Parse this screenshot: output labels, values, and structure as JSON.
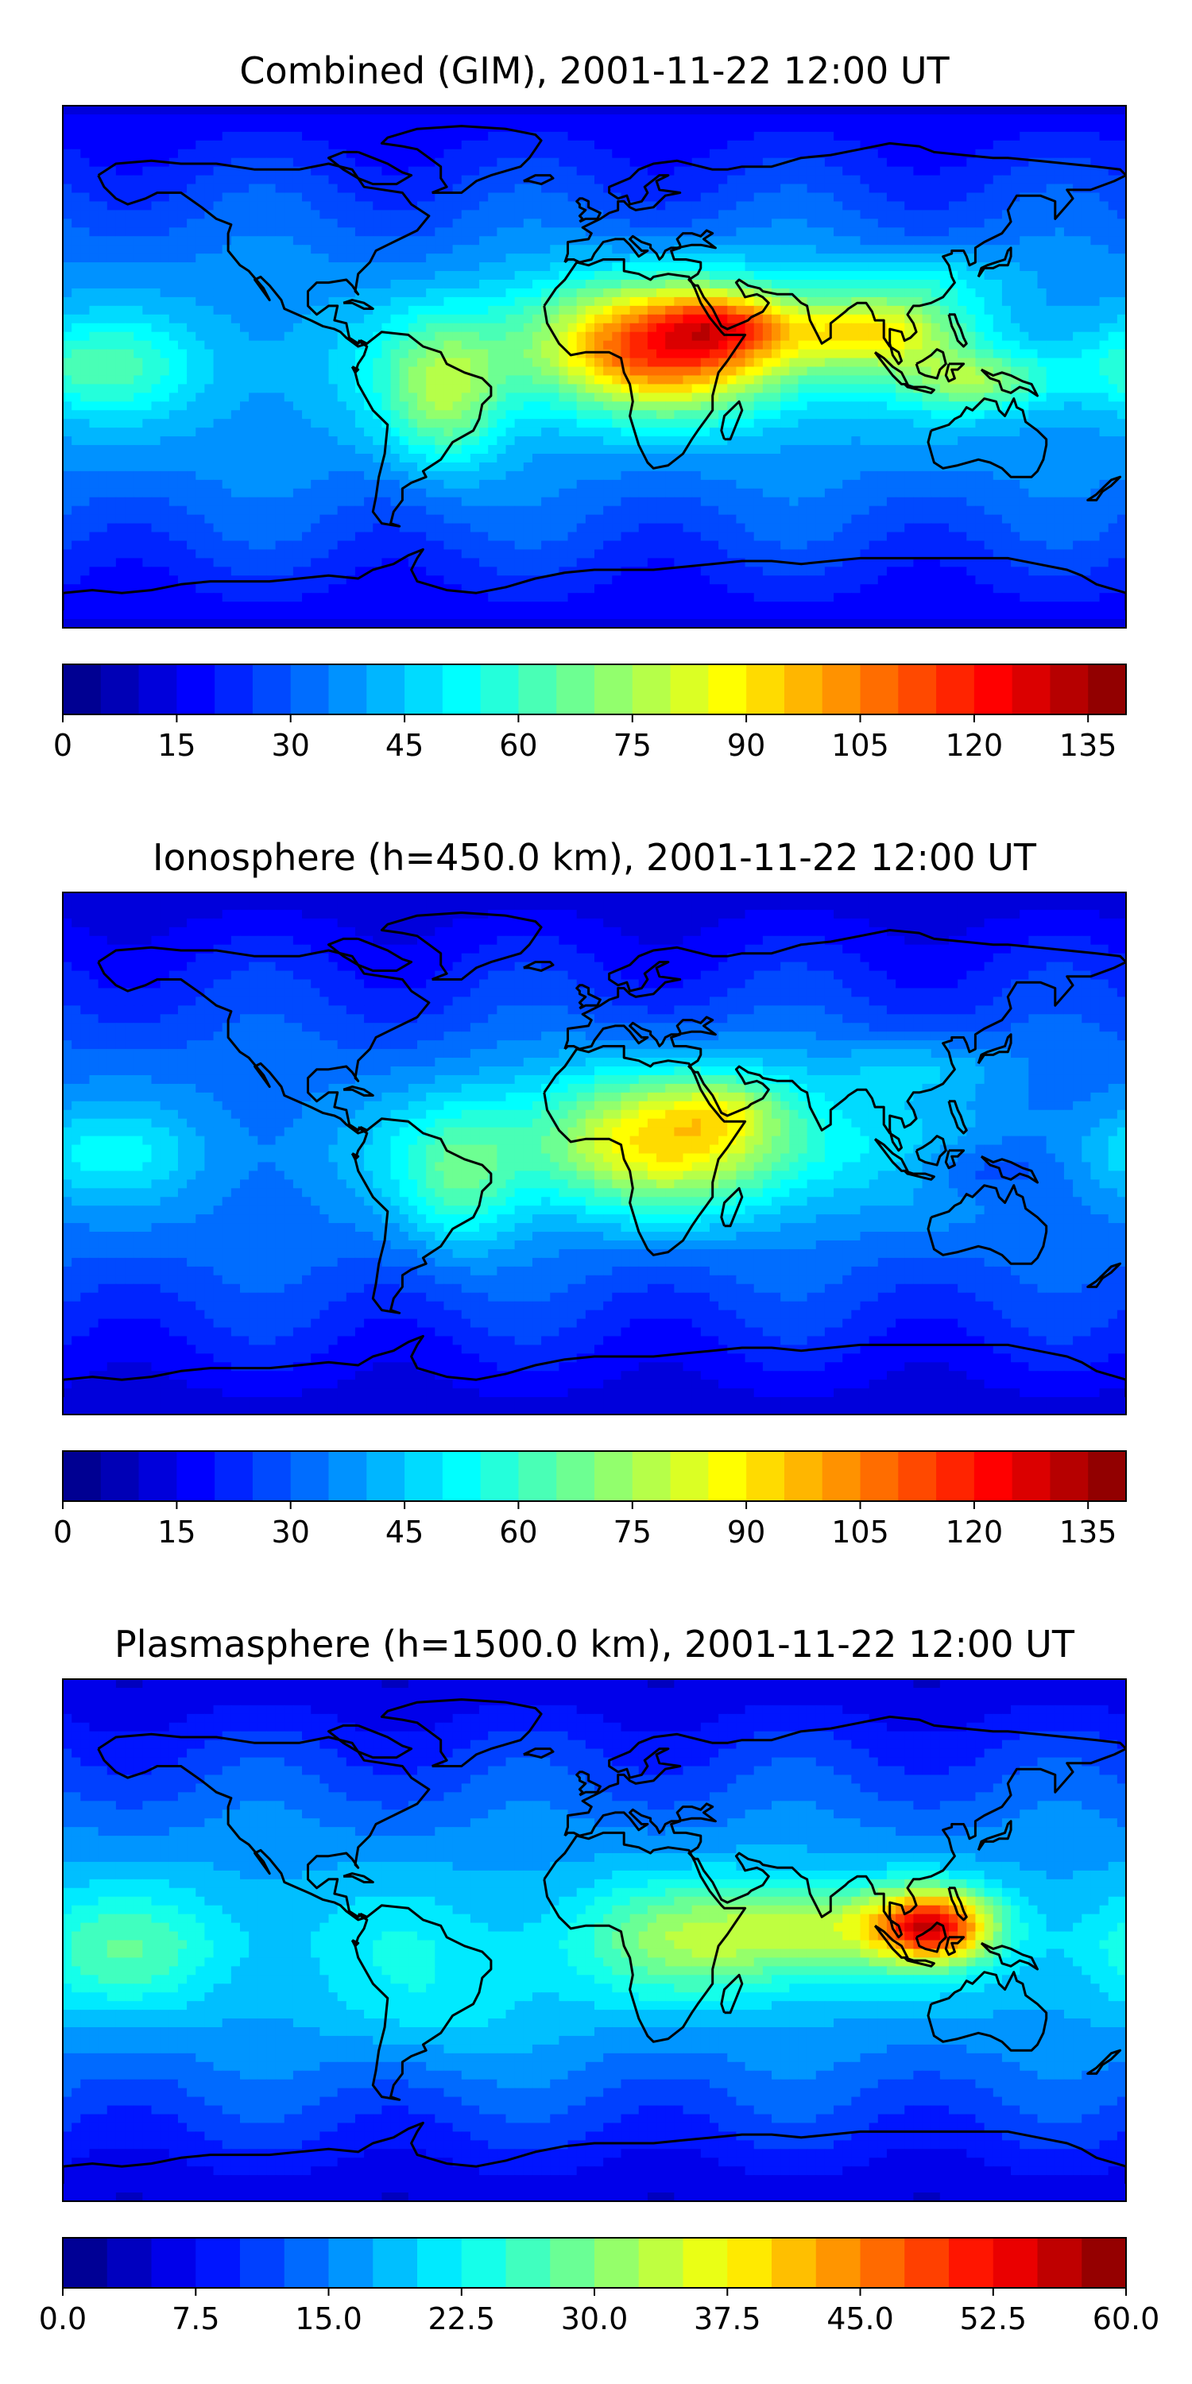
{
  "maps": [
    {
      "title": "Combined (GIM), 2001-11-22 12:00 UT",
      "colorbar": {
        "ticks": [
          "0",
          "15",
          "30",
          "45",
          "60",
          "75",
          "90",
          "105",
          "120",
          "135"
        ],
        "min": 0,
        "max": 140,
        "levels": 28
      },
      "field": {
        "base": 0.32,
        "lat_decay": 0.22,
        "blobs": [
          {
            "lon": 25,
            "lat": 8,
            "amp": 0.52,
            "wlon": 48,
            "wlat": 22
          },
          {
            "lon": 45,
            "lat": 15,
            "amp": 0.18,
            "wlon": 20,
            "wlat": 10
          },
          {
            "lon": 95,
            "lat": 12,
            "amp": 0.28,
            "wlon": 30,
            "wlat": 12
          },
          {
            "lon": -50,
            "lat": -10,
            "amp": 0.22,
            "wlon": 20,
            "wlat": 25
          },
          {
            "lon": 130,
            "lat": -5,
            "amp": 0.2,
            "wlon": 25,
            "wlat": 10
          },
          {
            "lon": 110,
            "lat": 30,
            "amp": 0.1,
            "wlon": 30,
            "wlat": 10
          },
          {
            "lon": -170,
            "lat": 0,
            "amp": 0.12,
            "wlon": 30,
            "wlat": 15
          }
        ]
      }
    },
    {
      "title": "Ionosphere  (h=450.0 km), 2001-11-22 12:00 UT",
      "colorbar": {
        "ticks": [
          "0",
          "15",
          "30",
          "45",
          "60",
          "75",
          "90",
          "105",
          "120",
          "135"
        ],
        "min": 0,
        "max": 140,
        "levels": 28
      },
      "field": {
        "base": 0.28,
        "lat_decay": 0.2,
        "blobs": [
          {
            "lon": 25,
            "lat": 5,
            "amp": 0.36,
            "wlon": 55,
            "wlat": 25
          },
          {
            "lon": 45,
            "lat": 15,
            "amp": 0.1,
            "wlon": 20,
            "wlat": 10
          },
          {
            "lon": -45,
            "lat": -10,
            "amp": 0.16,
            "wlon": 20,
            "wlat": 25
          },
          {
            "lon": 110,
            "lat": 30,
            "amp": 0.08,
            "wlon": 30,
            "wlat": 10
          },
          {
            "lon": 130,
            "lat": -5,
            "amp": -0.08,
            "wlon": 25,
            "wlat": 10
          },
          {
            "lon": -170,
            "lat": 0,
            "amp": 0.08,
            "wlon": 30,
            "wlat": 15
          }
        ]
      }
    },
    {
      "title": "Plasmasphere (h=1500.0 km), 2001-11-22 12:00 UT",
      "colorbar": {
        "ticks": [
          "0.0",
          "7.5",
          "15.0",
          "22.5",
          "30.0",
          "37.5",
          "45.0",
          "52.5",
          "60.0"
        ],
        "min": 0,
        "max": 60,
        "levels": 24
      },
      "field": {
        "base": 0.34,
        "lat_decay": 0.26,
        "blobs": [
          {
            "lon": 115,
            "lat": 5,
            "amp": 0.5,
            "wlon": 20,
            "wlat": 12
          },
          {
            "lon": 40,
            "lat": 0,
            "amp": 0.18,
            "wlon": 45,
            "wlat": 20
          },
          {
            "lon": 80,
            "lat": 5,
            "amp": 0.16,
            "wlon": 35,
            "wlat": 15
          },
          {
            "lon": -160,
            "lat": -5,
            "amp": 0.1,
            "wlon": 35,
            "wlat": 20
          },
          {
            "lon": -50,
            "lat": -25,
            "amp": 0.06,
            "wlon": 40,
            "wlat": 20
          }
        ]
      }
    }
  ]
}
